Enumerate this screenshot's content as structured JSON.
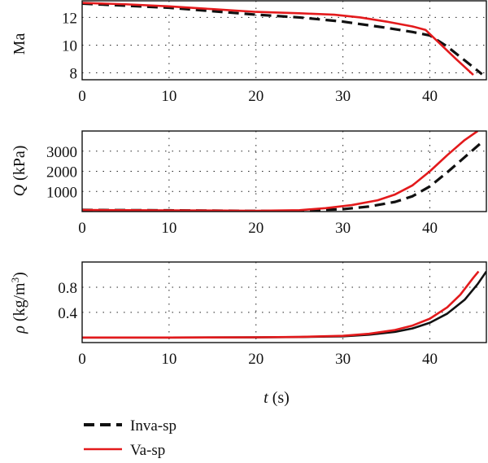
{
  "colors": {
    "inva": "#111111",
    "va": "#e31a1c"
  },
  "x_label": {
    "italic": "t",
    "unit": " (s)"
  },
  "legend": {
    "inva": "Inva-sp",
    "va": "Va-sp"
  },
  "chart_data": [
    {
      "type": "line",
      "ylabel": "Ma",
      "xlim": [
        0,
        46.5
      ],
      "ylim": [
        7.5,
        13.2
      ],
      "xticks": [
        0,
        10,
        20,
        30,
        40
      ],
      "yticks": [
        8,
        10,
        12
      ],
      "grid": true,
      "series": [
        {
          "name": "Inva-sp",
          "style": "dashed",
          "x": [
            0,
            5,
            10,
            15,
            20,
            25,
            30,
            35,
            38,
            40,
            42,
            44,
            46
          ],
          "y": [
            13.0,
            12.85,
            12.7,
            12.45,
            12.2,
            12.0,
            11.7,
            11.25,
            10.95,
            10.7,
            9.9,
            8.9,
            7.9
          ]
        },
        {
          "name": "Va-sp",
          "style": "solid",
          "x": [
            0,
            5,
            10,
            15,
            20,
            25,
            29,
            32,
            35,
            38,
            39.5,
            41,
            43,
            45
          ],
          "y": [
            13.05,
            12.95,
            12.8,
            12.6,
            12.4,
            12.3,
            12.2,
            12.0,
            11.7,
            11.35,
            11.1,
            10.2,
            9.0,
            7.85
          ]
        }
      ]
    },
    {
      "type": "line",
      "ylabel": "Q (kPa)",
      "xlim": [
        0,
        46.5
      ],
      "ylim": [
        0,
        4000
      ],
      "xticks": [
        0,
        10,
        20,
        30,
        40
      ],
      "yticks": [
        1000,
        2000,
        3000
      ],
      "grid": true,
      "series": [
        {
          "name": "Inva-sp",
          "style": "dashed",
          "x": [
            0,
            10,
            20,
            25,
            30,
            33,
            36,
            38,
            40,
            42,
            44,
            46
          ],
          "y": [
            80,
            60,
            30,
            40,
            120,
            250,
            480,
            760,
            1250,
            1950,
            2700,
            3450
          ]
        },
        {
          "name": "Va-sp",
          "style": "solid",
          "x": [
            0,
            10,
            20,
            25,
            28,
            31,
            34,
            36,
            38,
            40,
            42,
            44,
            45.5
          ],
          "y": [
            80,
            60,
            40,
            70,
            170,
            320,
            560,
            850,
            1300,
            2000,
            2800,
            3550,
            4000
          ]
        }
      ]
    },
    {
      "type": "line",
      "ylabel": "ρ (kg/m³)",
      "xlim": [
        0,
        46.5
      ],
      "ylim": [
        -0.08,
        1.2
      ],
      "xticks": [
        0,
        10,
        20,
        30,
        40
      ],
      "yticks": [
        0.4,
        0.8
      ],
      "grid": true,
      "series": [
        {
          "name": "Inva-sp",
          "style": "solid",
          "x": [
            0,
            10,
            20,
            25,
            30,
            33,
            36,
            38,
            40,
            42,
            44,
            45.5,
            46.5
          ],
          "y": [
            0.0,
            0.0,
            0.003,
            0.008,
            0.02,
            0.045,
            0.09,
            0.145,
            0.235,
            0.38,
            0.6,
            0.85,
            1.05
          ]
        },
        {
          "name": "Va-sp",
          "style": "solid",
          "x": [
            0,
            10,
            20,
            25,
            30,
            33,
            36,
            38,
            40,
            42,
            43.5,
            45,
            45.6
          ],
          "y": [
            0.0,
            0.0,
            0.004,
            0.01,
            0.028,
            0.06,
            0.12,
            0.19,
            0.3,
            0.48,
            0.68,
            0.95,
            1.05
          ]
        }
      ]
    }
  ]
}
